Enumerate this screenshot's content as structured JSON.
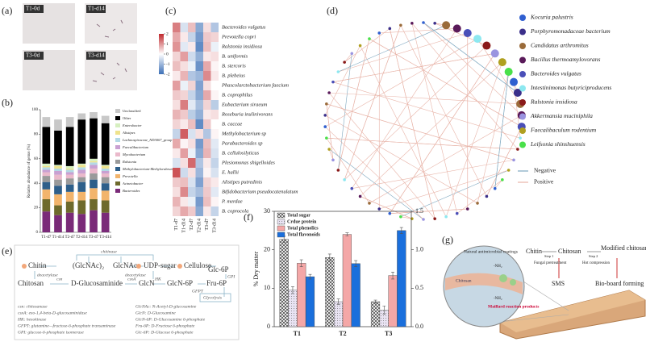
{
  "panel_labels": [
    "(a)",
    "(b)",
    "(c)",
    "(d)",
    "(e)",
    "(f)",
    "(g)"
  ],
  "micrographs": [
    "T1-0d",
    "T1-d14",
    "T3-0d",
    "T3-d14"
  ],
  "chart_data": [
    {
      "type": "bar",
      "stacked": true,
      "ylabel": "Relative abundance of genus (%)",
      "categories": [
        "T1-d7",
        "T1-d14",
        "T2-d7",
        "T2-d14",
        "T3-d7",
        "T3-d14"
      ],
      "ylim": [
        0,
        100
      ],
      "yticks": [
        0,
        20,
        40,
        60,
        80,
        100
      ],
      "series": [
        {
          "name": "Bacteroides",
          "color": "#7a2a78",
          "values": [
            17,
            14,
            16,
            15,
            18,
            16
          ]
        },
        {
          "name": "Acinetobacter",
          "color": "#6e6a2c",
          "values": [
            10,
            8,
            9,
            11,
            9,
            10
          ]
        },
        {
          "name": "Prevotella",
          "color": "#f2b46c",
          "values": [
            8,
            9,
            8,
            7,
            9,
            8
          ]
        },
        {
          "name": "Methylobacterium-Methylorubrum",
          "color": "#2e5f8a",
          "values": [
            6,
            7,
            6,
            8,
            7,
            6
          ]
        },
        {
          "name": "Ralstonia",
          "color": "#9a9a9a",
          "values": [
            5,
            5,
            5,
            4,
            5,
            5
          ]
        },
        {
          "name": "Mycobacterium",
          "color": "#eab9cb",
          "values": [
            3,
            4,
            3,
            3,
            4,
            3
          ]
        },
        {
          "name": "Faecalibacterium",
          "color": "#c9a0d2",
          "values": [
            2,
            3,
            2,
            3,
            3,
            2
          ]
        },
        {
          "name": "Lachnospiraceae_ND3007_group",
          "color": "#b3d9e6",
          "values": [
            2,
            2,
            2,
            2,
            2,
            2
          ]
        },
        {
          "name": "Alistipes",
          "color": "#efe38c",
          "values": [
            1,
            2,
            1,
            2,
            1,
            2
          ]
        },
        {
          "name": "Enterobacter",
          "color": "#d6efc0",
          "values": [
            2,
            1,
            2,
            1,
            2,
            1
          ]
        },
        {
          "name": "Other",
          "color": "#000000",
          "values": [
            30,
            28,
            32,
            36,
            33,
            34
          ]
        },
        {
          "name": "Unclassified",
          "color": "#c8c8c8",
          "values": [
            8,
            9,
            8,
            5,
            5,
            6
          ]
        }
      ]
    },
    {
      "type": "heatmap",
      "columns": [
        "T1-d7",
        "T1-d14",
        "T2-d7",
        "T2-d14",
        "T3-d7",
        "T3-d14"
      ],
      "rows": [
        "Bacteroides vulgatus",
        "Prevotella copri",
        "Ralstonia insidiosa",
        "B. uniformis",
        "B. stercoris",
        "B. plebeius",
        "Phascolarctobacterium faecium",
        "B. coprophilus",
        "Eubacterium siraeum",
        "Roseburia inulinivorans",
        "B. caccae",
        "Methylobacterium sp",
        "Parabacteroides sp",
        "B. cellulosilyticus",
        "Plesiomonas shigelloides",
        "E. hallii",
        "Alistipes putredinis",
        "Bifidobacterium pseudocatenulatum",
        "P. merdae",
        "B. coprocola"
      ],
      "values": [
        [
          1.2,
          -0.4,
          0.6,
          -1.2,
          0.3,
          -0.8
        ],
        [
          0.8,
          0.2,
          -0.6,
          -1.4,
          0.5,
          0.4
        ],
        [
          1.0,
          -0.3,
          0.2,
          -1.6,
          0.6,
          -0.2
        ],
        [
          0.4,
          0.9,
          -0.5,
          -1.1,
          0.2,
          0.3
        ],
        [
          0.6,
          0.3,
          -0.2,
          -1.5,
          0.8,
          0.1
        ],
        [
          0.2,
          0.7,
          -0.8,
          -1.0,
          1.1,
          0.2
        ],
        [
          0.9,
          -0.2,
          0.4,
          -1.3,
          0.3,
          0.0
        ],
        [
          0.5,
          0.4,
          -0.6,
          -1.2,
          0.8,
          0.1
        ],
        [
          0.3,
          1.2,
          -0.3,
          -0.9,
          0.4,
          -0.7
        ],
        [
          0.7,
          0.5,
          -0.7,
          -1.1,
          0.2,
          0.3
        ],
        [
          0.4,
          0.2,
          0.6,
          -1.6,
          0.5,
          0.0
        ],
        [
          -0.6,
          1.5,
          -0.4,
          0.3,
          -0.8,
          0.1
        ],
        [
          0.8,
          0.1,
          0.3,
          -1.4,
          0.6,
          -0.3
        ],
        [
          0.2,
          0.9,
          -0.2,
          -1.2,
          0.7,
          -0.4
        ],
        [
          -0.4,
          0.3,
          1.4,
          -0.8,
          0.2,
          -0.6
        ],
        [
          1.6,
          -0.5,
          0.3,
          -1.0,
          0.1,
          -0.4
        ],
        [
          0.5,
          0.6,
          -0.4,
          -1.3,
          0.4,
          0.2
        ],
        [
          0.3,
          1.1,
          -0.6,
          -0.9,
          0.5,
          -0.3
        ],
        [
          0.7,
          0.2,
          -0.2,
          -1.4,
          0.6,
          0.1
        ],
        [
          0.4,
          0.8,
          0.5,
          -1.2,
          0.2,
          -0.6
        ]
      ],
      "zlim": [
        -2,
        2
      ],
      "zticks": [
        2,
        1,
        0,
        -1,
        -2
      ]
    },
    {
      "type": "bar",
      "ylabel": "% Dry matter",
      "categories": [
        "T1",
        "T2",
        "T3"
      ],
      "ylim": [
        0,
        30
      ],
      "yticks": [
        0,
        10,
        20,
        30
      ],
      "y2lim": [
        0,
        1.5
      ],
      "y2ticks": [
        {
          "value": 0,
          "label": "0.0"
        },
        0.5,
        {
          "value": 1,
          "label": "1.0"
        },
        1.5
      ],
      "series": [
        {
          "name": "Total sugar",
          "color": "#ffffff",
          "pattern": "crosshatch",
          "values": [
            22.7,
            18.0,
            6.5
          ],
          "errors": [
            0.8,
            0.9,
            0.4
          ]
        },
        {
          "name": "Crdue protein",
          "color": "#e9e3f3",
          "pattern": "dots",
          "values": [
            9.5,
            6.5,
            4.3
          ],
          "errors": [
            0.9,
            0.7,
            1.1
          ]
        },
        {
          "name": "Total phenolics",
          "color": "#f4a7a7",
          "values": [
            16.5,
            24.0,
            13.3
          ],
          "errors": [
            0.9,
            0.4,
            0.9
          ]
        },
        {
          "name": "Total flavonoids",
          "color": "#1a6fdc",
          "axis": "y2",
          "values": [
            0.65,
            0.82,
            1.25
          ],
          "errors": [
            0.03,
            0.04,
            0.04
          ]
        }
      ]
    }
  ],
  "network": {
    "legend": [
      {
        "name": "Kocuria palustris",
        "color": "#2f5fd0"
      },
      {
        "name": "Porphyromonadaceae bacterium",
        "color": "#3b2f8a"
      },
      {
        "name": "Candidatus arthromitus",
        "color": "#9a6b3a"
      },
      {
        "name": "Bacillus thermoamylovorans",
        "color": "#5a1a5a"
      },
      {
        "name": "Bacteroides vulgatus",
        "color": "#4a4fb8"
      },
      {
        "name": "Intestinimonas butyriciproducens",
        "color": "#8de8f0"
      },
      {
        "name": "Ralstonia insidiosa",
        "color": "#8a1a1a"
      },
      {
        "name": "Akkermansia muciniphila",
        "color": "#9a94e0"
      },
      {
        "name": "Faecalibaculum rodentium",
        "color": "#b0a020"
      },
      {
        "name": "Leifsonia shinshuensis",
        "color": "#4ae04a"
      }
    ],
    "lines": [
      {
        "name": "Negative",
        "color": "#7fa8c0"
      },
      {
        "name": "Positive",
        "color": "#e8b4a8"
      }
    ]
  },
  "pathway": {
    "chitin": "Chitin",
    "glcnac2": "(GlcNAc)₂",
    "glcnac": "GlcNAc",
    "udp": "UDP-sugar",
    "cellulose": "Cellulose",
    "chitinase": "chitinase",
    "deacetylase1": "deacetylase",
    "deacetylase2": "deacetylase",
    "chitosan": "Chitosan",
    "csn": "csn",
    "glucosaminide": "D-Glucosaminide",
    "csxa": "csxA",
    "glcn": "GlcN",
    "hk": "HK",
    "glcn6p": "GlcN-6P",
    "gfpt": "GFPT",
    "fru6p": "Fru-6P",
    "glc6p": "Glc-6P",
    "gpi": "GPI",
    "glycolysis": "Glycolysis",
    "notes_left": [
      "csn: chitosanase",
      "csxA: exo-1,4-beta-D-glucosaminidase",
      "HK: hexokinase",
      "GFPT: glutamine—fructose-6-phosphate transaminase",
      "GPI: glucose-6-phosphate isomerase"
    ],
    "notes_right": [
      "GlcNAc: N-Acetyl-D-glucosamine",
      "GlcN: D-Glucosamine",
      "GlcN-6P: D-Glucosamine 6-phosphate",
      "Fru-6P: D-Fructose 6-phosphate",
      "Glc-6P: D-Glucose 6-phosphate"
    ]
  },
  "process": {
    "coating": "Natural antimicrobial coatings",
    "inner_chitosan": "Chitosan",
    "nh2a": "-NH₂",
    "nh2b": "-NH₂",
    "maillard": "Maillard reaction products",
    "chitin": "Chitin",
    "chitosan": "Chitosan",
    "modified": "Modified chitosan",
    "step1": "Step 1",
    "fungal": "Fungal pretreatment",
    "step2": "Step 2",
    "hot": "Hot compression",
    "sms": "SMS",
    "forming": "Bio-board forming"
  }
}
